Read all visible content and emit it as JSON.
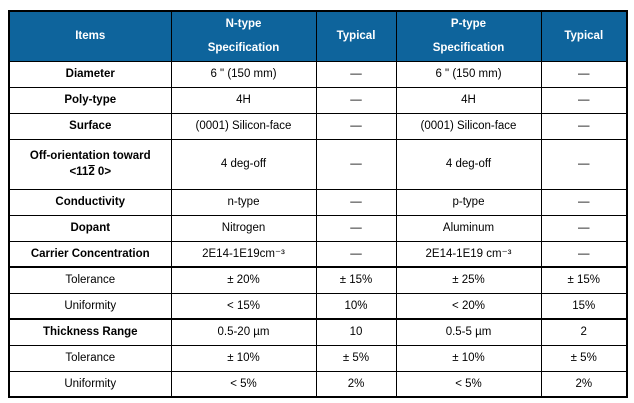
{
  "colors": {
    "header_bg": "#0e649c",
    "header_text": "#ffffff",
    "border": "#000000"
  },
  "header": {
    "items": "Items",
    "n_type_line1": "N-type",
    "n_type_line2": "Specification",
    "typical_n": "Typical",
    "p_type_line1": "P-type",
    "p_type_line2": "Specification",
    "typical_p": "Typical"
  },
  "rows": [
    {
      "item": "Diameter",
      "n_spec": "6 \" (150 mm)",
      "n_typ": "—",
      "p_spec": "6 \" (150 mm)",
      "p_typ": "—"
    },
    {
      "item": "Poly-type",
      "n_spec": "4H",
      "n_typ": "—",
      "p_spec": "4H",
      "p_typ": "—"
    },
    {
      "item": "Surface",
      "n_spec": "(0001) Silicon-face",
      "n_typ": "—",
      "p_spec": "(0001) Silicon-face",
      "p_typ": "—"
    },
    {
      "item": "Off-orientation toward",
      "item_line2_prefix": "<11",
      "item_line2_bar": "2",
      "item_line2_suffix": " 0>",
      "n_spec": "4 deg-off",
      "n_typ": "—",
      "p_spec": "4 deg-off",
      "p_typ": "—"
    },
    {
      "item": "Conductivity",
      "n_spec": "n-type",
      "n_typ": "—",
      "p_spec": "p-type",
      "p_typ": "—"
    },
    {
      "item": "Dopant",
      "n_spec": "Nitrogen",
      "n_typ": "—",
      "p_spec": "Aluminum",
      "p_typ": "—"
    },
    {
      "item": "Carrier Concentration",
      "n_spec": "2E14-1E19cm⁻³",
      "n_typ": "—",
      "p_spec": "2E14-1E19 cm⁻³",
      "p_typ": "—"
    },
    {
      "item": "Tolerance",
      "n_spec": "± 20%",
      "n_typ": "± 15%",
      "p_spec": "± 25%",
      "p_typ": "± 15%"
    },
    {
      "item": "Uniformity",
      "n_spec": "< 15%",
      "n_typ": "10%",
      "p_spec": "< 20%",
      "p_typ": "15%"
    },
    {
      "item": "Thickness Range",
      "n_spec": "0.5-20 µm",
      "n_typ": "10",
      "p_spec": "0.5-5 µm",
      "p_typ": "2"
    },
    {
      "item": "Tolerance",
      "n_spec": "± 10%",
      "n_typ": "± 5%",
      "p_spec": "± 10%",
      "p_typ": "± 5%"
    },
    {
      "item": "Uniformity",
      "n_spec": "< 5%",
      "n_typ": "2%",
      "p_spec": "< 5%",
      "p_typ": "2%"
    }
  ]
}
